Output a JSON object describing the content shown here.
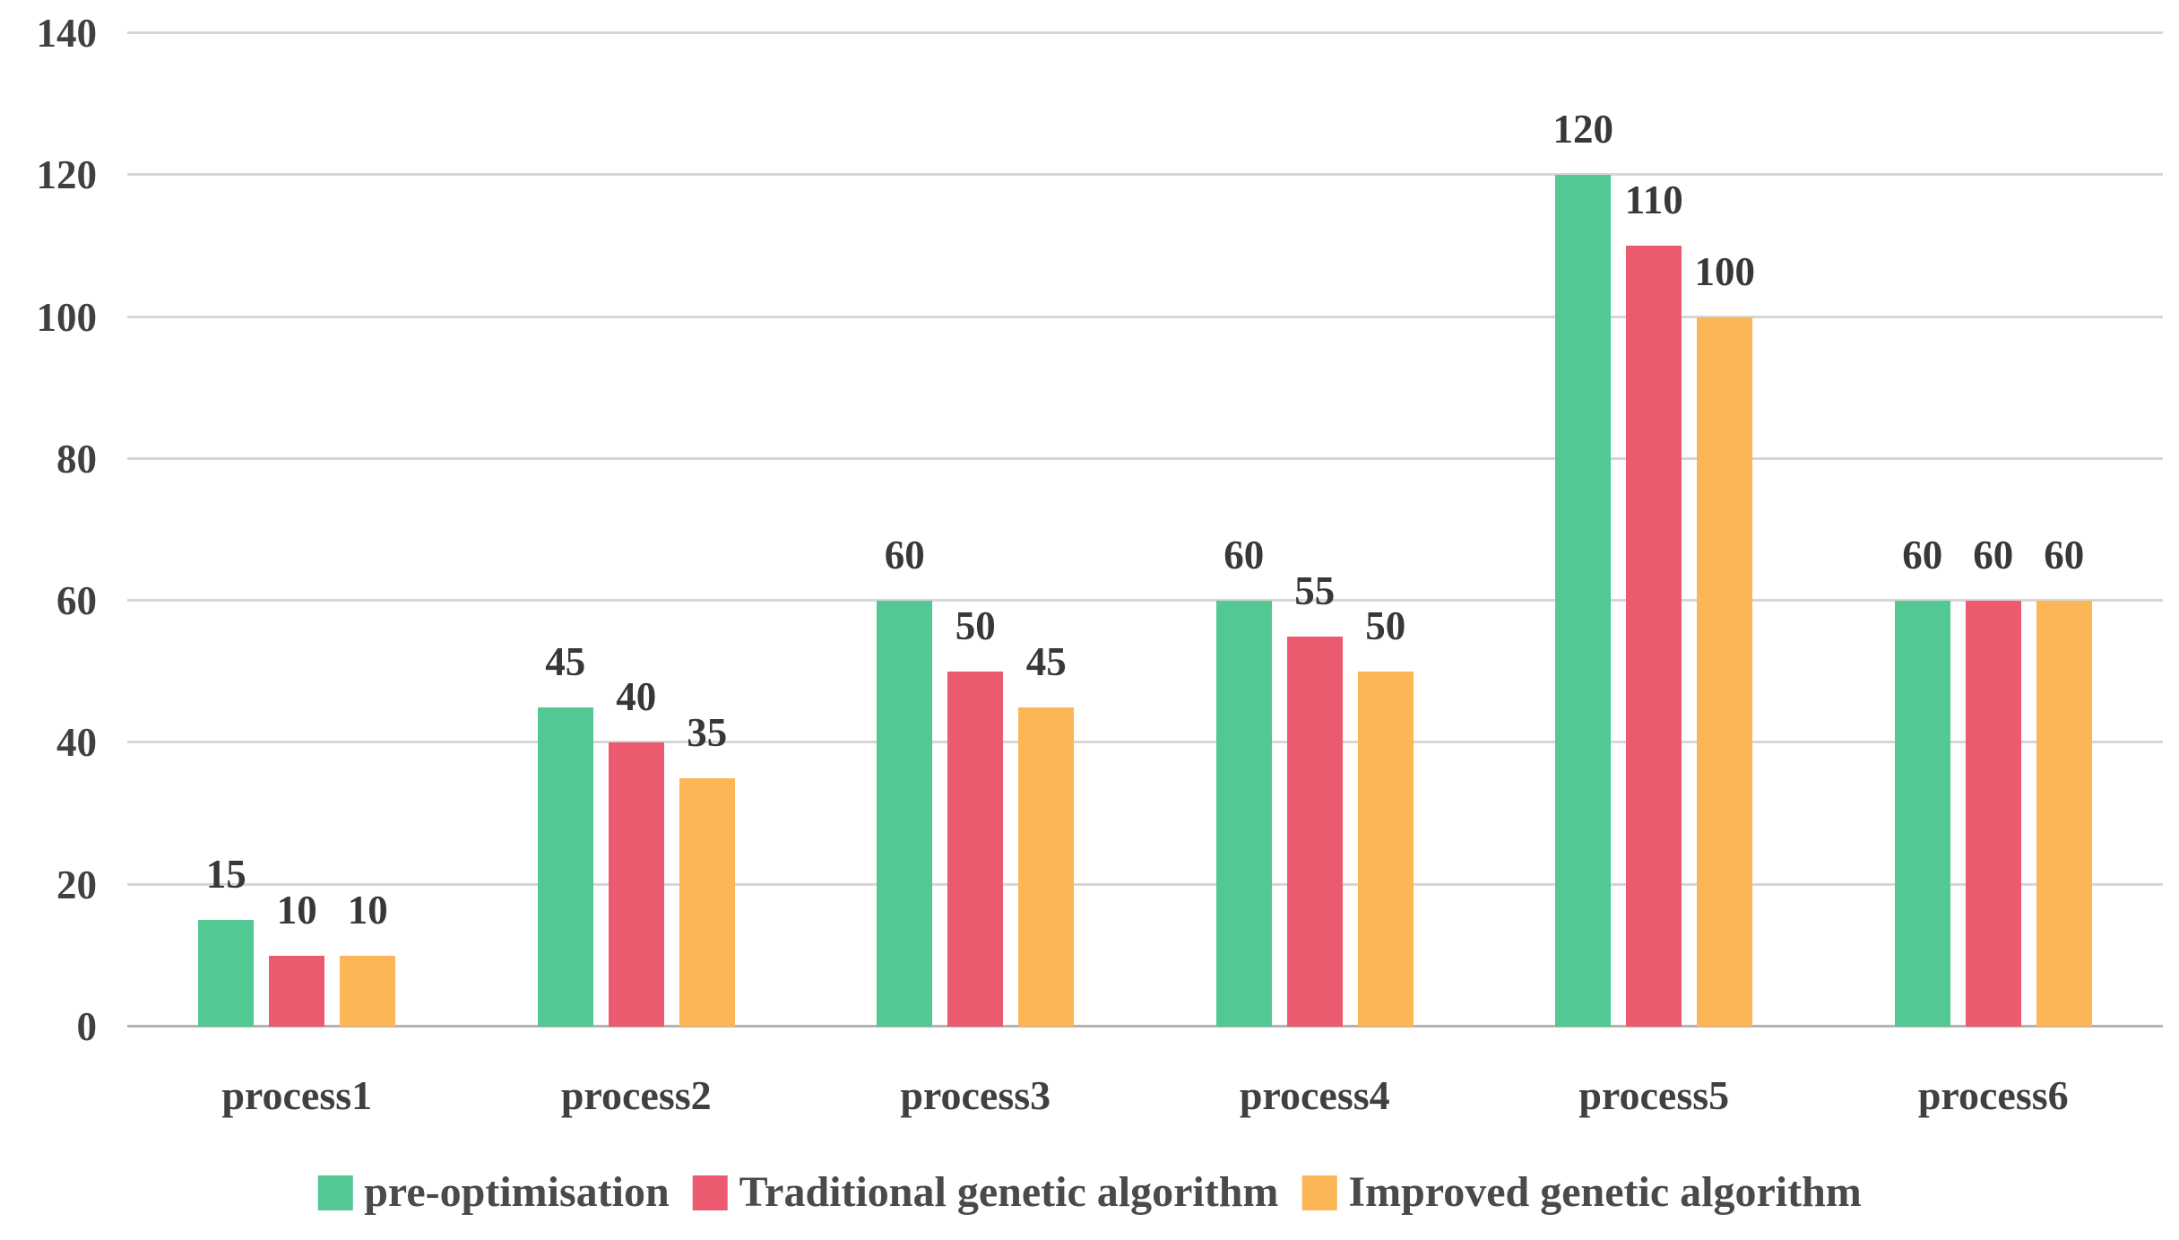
{
  "chart_data": {
    "type": "bar",
    "title": "",
    "xlabel": "",
    "ylabel": "",
    "categories": [
      "process1",
      "process2",
      "process3",
      "process4",
      "process5",
      "process6"
    ],
    "series": [
      {
        "name": "pre-optimisation",
        "color": "#52C892",
        "values": [
          15,
          45,
          60,
          60,
          120,
          60
        ]
      },
      {
        "name": "Traditional genetic algorithm",
        "color": "#EB5A6F",
        "values": [
          10,
          40,
          50,
          55,
          110,
          60
        ]
      },
      {
        "name": "Improved genetic algorithm",
        "color": "#FDB655",
        "values": [
          10,
          35,
          45,
          50,
          100,
          60
        ]
      }
    ],
    "yticks": [
      0,
      20,
      40,
      60,
      80,
      100,
      120,
      140
    ],
    "ylim": [
      0,
      140
    ],
    "grid": true,
    "value_labels": true,
    "legend_position": "bottom"
  },
  "colors": {
    "background": "#FFFFFF",
    "gridline": "#D6D6D6",
    "axis_line": "#B3B3B3",
    "tick_text": "#404040",
    "value_text": "#383838",
    "category_text": "#404040",
    "legend_text": "#4A4A4A"
  }
}
